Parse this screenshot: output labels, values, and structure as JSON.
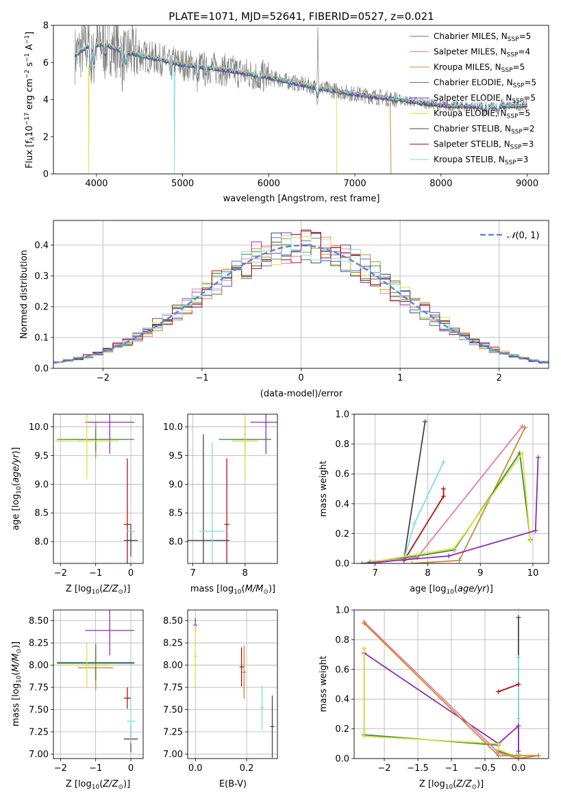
{
  "title": "PLATE=1071, MJD=52641, FIBERID=0527, z=0.021",
  "colors": {
    "Chabrier MILES": "#4c6fd6",
    "Salpeter MILES": "#e57aa8",
    "Kroupa MILES": "#c88a2a",
    "Chabrier ELODIE": "#3c8a3c",
    "Salpeter ELODIE": "#8e2bb0",
    "Kroupa ELODIE": "#e0e040",
    "Chabrier STELIB": "#444444",
    "Salpeter STELIB": "#b01010",
    "Kroupa STELIB": "#80dede",
    "data": "#808080",
    "gauss": "#5b87d8",
    "grid": "#b0b0b0"
  },
  "chart_data": [
    {
      "type": "line",
      "xlabel": "wavelength [Angstrom, rest frame]",
      "ylabel": "Flux [f_λ 10^-17 erg cm^-2 s^-1 A^-1]",
      "xlim": [
        3500,
        9250
      ],
      "ylim": [
        0,
        8
      ],
      "xticks": [
        4000,
        5000,
        6000,
        7000,
        8000,
        9000
      ],
      "yticks": [
        0,
        2,
        4,
        6,
        8
      ],
      "legend_position": "top-right",
      "legend": [
        {
          "name": "Chabrier MILES",
          "nssp": "5"
        },
        {
          "name": "Salpeter MILES",
          "nssp": "4"
        },
        {
          "name": "Kroupa MILES",
          "nssp": "5"
        },
        {
          "name": "Chabrier ELODIE",
          "nssp": "5"
        },
        {
          "name": "Salpeter ELODIE",
          "nssp": "5"
        },
        {
          "name": "Kroupa ELODIE",
          "nssp": "5"
        },
        {
          "name": "Chabrier STELIB",
          "nssp": "2"
        },
        {
          "name": "Salpeter STELIB",
          "nssp": "3"
        },
        {
          "name": "Kroupa STELIB",
          "nssp": "3"
        }
      ],
      "continuum": [
        [
          3750,
          6.4
        ],
        [
          3900,
          6.9
        ],
        [
          4100,
          7.0
        ],
        [
          4300,
          6.6
        ],
        [
          4600,
          6.3
        ],
        [
          5000,
          5.9
        ],
        [
          5500,
          5.6
        ],
        [
          6000,
          5.2
        ],
        [
          6500,
          4.7
        ],
        [
          7000,
          4.3
        ],
        [
          7500,
          4.0
        ],
        [
          8000,
          3.7
        ],
        [
          8500,
          3.6
        ],
        [
          9000,
          3.7
        ]
      ]
    },
    {
      "type": "histogram",
      "xlabel": "(data-model)/error",
      "ylabel": "Normed distribution",
      "xlim": [
        -2.5,
        2.5
      ],
      "ylim": [
        0,
        0.48
      ],
      "xticks": [
        -2,
        -1,
        0,
        1,
        2
      ],
      "yticks": [
        0.0,
        0.1,
        0.2,
        0.3,
        0.4
      ],
      "legend": "N(0,1)",
      "legend_position": "top-right",
      "bin_width": 0.1
    },
    {
      "type": "errorbar",
      "xlabel": "Z [log10(Z/Z⊙)]",
      "ylabel": "age [log10(age/yr)]",
      "xlim": [
        -2.2,
        0.35
      ],
      "ylim": [
        7.62,
        10.22
      ],
      "xticks": [
        -2,
        -1,
        0
      ],
      "yticks": [
        8.0,
        8.5,
        9.0,
        9.5,
        10.0
      ],
      "points": [
        {
          "m": "Chabrier MILES",
          "x": -1.0,
          "y": 9.78,
          "xe": 0.9,
          "ye": 0.3
        },
        {
          "m": "Salpeter MILES",
          "x": -1.0,
          "y": 9.78,
          "xe": 0.4,
          "ye": 0.3
        },
        {
          "m": "Kroupa MILES",
          "x": -1.0,
          "y": 9.75,
          "xe": 0.5,
          "ye": 0.3
        },
        {
          "m": "Chabrier ELODIE",
          "x": -1.0,
          "y": 9.78,
          "xe": 1.1,
          "ye": 0.2
        },
        {
          "m": "Salpeter ELODIE",
          "x": -0.6,
          "y": 10.08,
          "xe": 0.7,
          "ye": 0.55
        },
        {
          "m": "Kroupa ELODIE",
          "x": -1.25,
          "y": 9.75,
          "xe": 0.9,
          "ye": 0.65
        },
        {
          "m": "Chabrier STELIB",
          "x": 0.0,
          "y": 8.02,
          "xe": 0.2,
          "ye": 0.28
        },
        {
          "m": "Salpeter STELIB",
          "x": -0.1,
          "y": 8.3,
          "xe": 0.1,
          "ye": 1.15
        },
        {
          "m": "Kroupa STELIB",
          "x": 0.0,
          "y": 8.18,
          "xe": 0.12,
          "ye": 0.0
        }
      ]
    },
    {
      "type": "errorbar",
      "xlabel": "mass [log10(M/M⊙)]",
      "xlim": [
        6.9,
        8.62
      ],
      "ylim": [
        7.62,
        10.22
      ],
      "xticks": [
        7,
        8
      ],
      "yticks": [
        8.0,
        8.5,
        9.0,
        9.5,
        10.0
      ],
      "points": [
        {
          "m": "Chabrier MILES",
          "x": 8.0,
          "y": 9.78,
          "xe": 0.5,
          "ye": 0.3
        },
        {
          "m": "Salpeter MILES",
          "x": 8.0,
          "y": 9.78,
          "xe": 0.25,
          "ye": 0.3
        },
        {
          "m": "Kroupa MILES",
          "x": 8.0,
          "y": 9.75,
          "xe": 0.25,
          "ye": 0.3
        },
        {
          "m": "Chabrier ELODIE",
          "x": 8.0,
          "y": 9.78,
          "xe": 0.5,
          "ye": 0.2
        },
        {
          "m": "Salpeter ELODIE",
          "x": 8.4,
          "y": 10.08,
          "xe": 0.3,
          "ye": 0.55
        },
        {
          "m": "Kroupa ELODIE",
          "x": 8.0,
          "y": 9.75,
          "xe": 0.25,
          "ye": 0.65
        },
        {
          "m": "Chabrier STELIB",
          "x": 7.2,
          "y": 8.02,
          "xe": 0.5,
          "ye": 1.85
        },
        {
          "m": "Salpeter STELIB",
          "x": 7.65,
          "y": 8.3,
          "xe": 0.05,
          "ye": 1.15
        },
        {
          "m": "Kroupa STELIB",
          "x": 7.37,
          "y": 8.18,
          "xe": 0.25,
          "ye": 1.55
        }
      ]
    },
    {
      "type": "line",
      "xlabel": "age [log10(age/yr)]",
      "ylabel": "mass weight",
      "xlim": [
        6.6,
        10.3
      ],
      "ylim": [
        0,
        1
      ],
      "xticks": [
        7,
        8,
        9,
        10
      ],
      "yticks": [
        0.0,
        0.2,
        0.4,
        0.6,
        0.8,
        1.0
      ],
      "series": [
        {
          "m": "Chabrier STELIB",
          "points": [
            [
              7.55,
              0.03
            ],
            [
              7.95,
              0.95
            ]
          ]
        },
        {
          "m": "Kroupa STELIB",
          "points": [
            [
              7.55,
              0.03
            ],
            [
              7.75,
              0.27
            ],
            [
              8.3,
              0.68
            ]
          ]
        },
        {
          "m": "Salpeter STELIB",
          "points": [
            [
              7.55,
              0.02
            ],
            [
              8.3,
              0.45
            ],
            [
              8.3,
              0.5
            ]
          ]
        },
        {
          "m": "Salpeter MILES",
          "points": [
            [
              6.95,
              0.0
            ],
            [
              7.8,
              0.04
            ],
            [
              9.8,
              0.92
            ]
          ]
        },
        {
          "m": "Kroupa MILES",
          "points": [
            [
              7.7,
              0.0
            ],
            [
              8.6,
              0.02
            ],
            [
              9.85,
              0.91
            ]
          ]
        },
        {
          "m": "Chabrier ELODIE",
          "points": [
            [
              6.9,
              0.01
            ],
            [
              7.8,
              0.05
            ],
            [
              8.5,
              0.09
            ],
            [
              9.75,
              0.74
            ],
            [
              9.95,
              0.16
            ]
          ]
        },
        {
          "m": "Kroupa ELODIE",
          "points": [
            [
              6.95,
              0.01
            ],
            [
              7.8,
              0.06
            ],
            [
              8.5,
              0.1
            ],
            [
              9.8,
              0.74
            ],
            [
              9.95,
              0.15
            ]
          ]
        },
        {
          "m": "Salpeter ELODIE",
          "points": [
            [
              6.75,
              0.0
            ],
            [
              8.4,
              0.05
            ],
            [
              10.05,
              0.22
            ],
            [
              10.1,
              0.71
            ]
          ]
        }
      ]
    },
    {
      "type": "errorbar",
      "xlabel": "Z [log10(Z/Z⊙)]",
      "ylabel": "mass [log10(M/M⊙)]",
      "xlim": [
        -2.2,
        0.35
      ],
      "ylim": [
        6.95,
        8.62
      ],
      "xticks": [
        -2,
        -1,
        0
      ],
      "yticks": [
        7.0,
        7.25,
        7.5,
        7.75,
        8.0,
        8.25,
        8.5
      ],
      "points": [
        {
          "m": "Chabrier MILES",
          "x": -1.0,
          "y": 8.02,
          "xe": 1.1,
          "ye": 0.2
        },
        {
          "m": "Salpeter MILES",
          "x": -1.0,
          "y": 8.0,
          "xe": 0.4,
          "ye": 0.25
        },
        {
          "m": "Kroupa MILES",
          "x": -1.0,
          "y": 7.97,
          "xe": 0.5,
          "ye": 0.25
        },
        {
          "m": "Chabrier ELODIE",
          "x": -1.0,
          "y": 8.03,
          "xe": 1.1,
          "ye": 0.2
        },
        {
          "m": "Salpeter ELODIE",
          "x": -0.6,
          "y": 8.39,
          "xe": 0.7,
          "ye": 0.28
        },
        {
          "m": "Kroupa ELODIE",
          "x": -1.25,
          "y": 8.0,
          "xe": 0.9,
          "ye": 0.25
        },
        {
          "m": "Chabrier STELIB",
          "x": 0.0,
          "y": 7.17,
          "xe": 0.2,
          "ye": 0.15
        },
        {
          "m": "Salpeter STELIB",
          "x": -0.1,
          "y": 7.63,
          "xe": 0.1,
          "ye": 0.12
        },
        {
          "m": "Kroupa STELIB",
          "x": 0.0,
          "y": 7.37,
          "xe": 0.12,
          "ye": 0.25
        }
      ]
    },
    {
      "type": "errorbar",
      "xlabel": "E(B-V)",
      "xlim": [
        -0.03,
        0.32
      ],
      "ylim": [
        6.95,
        8.62
      ],
      "xticks": [
        0.0,
        0.2
      ],
      "yticks": [
        7.0,
        7.25,
        7.5,
        7.75,
        8.0,
        8.25,
        8.5
      ],
      "points": [
        {
          "m": "Salpeter ELODIE",
          "x": 0.0,
          "y": 8.45,
          "xe": 0.0,
          "ye": 0.08
        },
        {
          "m": "Kroupa ELODIE",
          "x": 0.0,
          "y": 8.1,
          "xe": 0.0,
          "ye": 0.35
        },
        {
          "m": "Salpeter STELIB",
          "x": 0.18,
          "y": 7.98,
          "xe": 0.0,
          "ye": 0.22
        },
        {
          "m": "Kroupa MILES",
          "x": 0.19,
          "y": 7.92,
          "xe": 0.0,
          "ye": 0.3
        },
        {
          "m": "Kroupa STELIB",
          "x": 0.26,
          "y": 7.52,
          "xe": 0.0,
          "ye": 0.25
        },
        {
          "m": "Chabrier STELIB",
          "x": 0.3,
          "y": 7.31,
          "xe": 0.0,
          "ye": 0.35
        }
      ]
    },
    {
      "type": "line",
      "xlabel": "Z [log10(Z/Z⊙)]",
      "ylabel": "mass weight",
      "xlim": [
        -2.45,
        0.45
      ],
      "ylim": [
        0,
        1
      ],
      "xticks": [
        -2.0,
        -1.5,
        -1.0,
        -0.5,
        0.0
      ],
      "yticks": [
        0.0,
        0.2,
        0.4,
        0.6,
        0.8,
        1.0
      ],
      "series": [
        {
          "m": "Chabrier STELIB",
          "points": [
            [
              0.0,
              0.03
            ],
            [
              0.0,
              0.95
            ]
          ]
        },
        {
          "m": "Kroupa STELIB",
          "points": [
            [
              0.0,
              0.03
            ],
            [
              0.0,
              0.27
            ],
            [
              0.0,
              0.68
            ]
          ]
        },
        {
          "m": "Salpeter STELIB",
          "points": [
            [
              -0.3,
              0.45
            ],
            [
              0.0,
              0.5
            ]
          ]
        },
        {
          "m": "Salpeter ELODIE",
          "points": [
            [
              -2.3,
              0.71
            ],
            [
              -0.3,
              0.1
            ],
            [
              0.0,
              0.22
            ],
            [
              0.0,
              0.05
            ]
          ]
        },
        {
          "m": "Chabrier ELODIE",
          "points": [
            [
              -2.3,
              0.74
            ],
            [
              -2.3,
              0.16
            ],
            [
              -0.3,
              0.09
            ],
            [
              -0.3,
              0.05
            ],
            [
              0.0,
              0.01
            ]
          ]
        },
        {
          "m": "Kroupa ELODIE",
          "points": [
            [
              -2.3,
              0.74
            ],
            [
              -2.3,
              0.15
            ],
            [
              -0.3,
              0.1
            ],
            [
              -0.3,
              0.06
            ],
            [
              0.0,
              0.01
            ]
          ]
        },
        {
          "m": "Salpeter MILES",
          "points": [
            [
              -2.3,
              0.92
            ],
            [
              -0.3,
              0.04
            ],
            [
              0.0,
              0.0
            ]
          ]
        },
        {
          "m": "Kroupa MILES",
          "points": [
            [
              -2.3,
              0.91
            ],
            [
              -0.3,
              0.02
            ],
            [
              0.3,
              0.02
            ],
            [
              0.0,
              0.0
            ]
          ]
        }
      ]
    }
  ]
}
